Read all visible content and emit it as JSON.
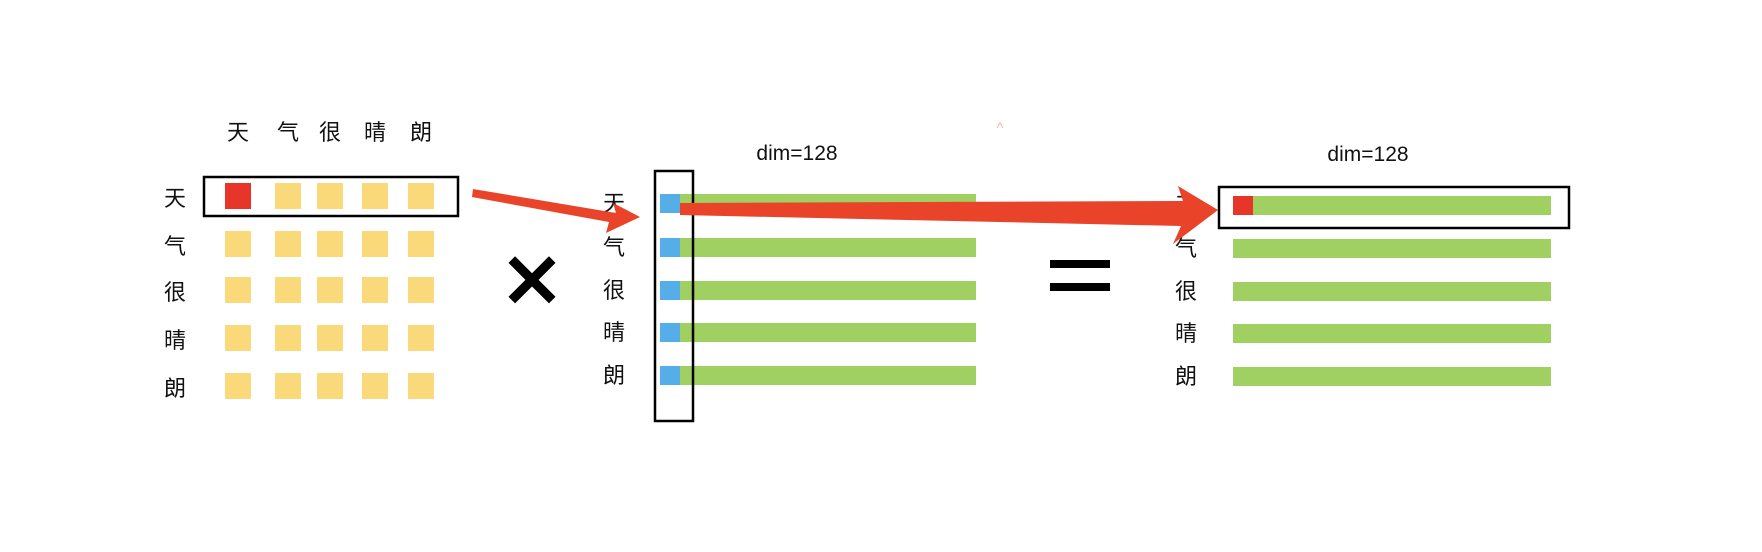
{
  "tokens": [
    "天",
    "气",
    "很",
    "晴",
    "朗"
  ],
  "attention_matrix": {
    "highlighted_cell": [
      0,
      0
    ],
    "cell_color": "#f9d97a",
    "highlight_color": "#e8352a"
  },
  "value_matrix": {
    "dim_label": "dim=128",
    "first_column_color": "#56aee8",
    "row_color": "#a0cf62"
  },
  "output_matrix": {
    "dim_label": "dim=128",
    "row_color": "#a0cf62",
    "first_cell_color": "#e8352a"
  },
  "operators": {
    "multiply": "×",
    "equals": "="
  },
  "arrow_color": "#e94429",
  "box_color": "#000000"
}
